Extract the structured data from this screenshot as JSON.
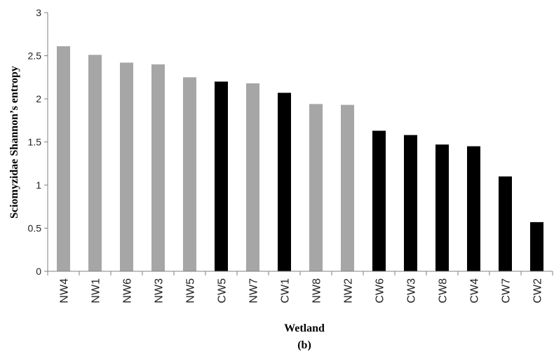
{
  "chart_data": {
    "type": "bar",
    "ylabel": "Sciomyzidae Shannon’s entropy",
    "xlabel": "Wetland",
    "caption": "(b)",
    "ylim": [
      0,
      3
    ],
    "yticks": [
      "0",
      "0.5",
      "1",
      "1.5",
      "2",
      "2.5",
      "3"
    ],
    "grid": false,
    "legend": "none",
    "categories": [
      "NW4",
      "NW1",
      "NW6",
      "NW3",
      "NW5",
      "CW5",
      "NW7",
      "CW1",
      "NW8",
      "NW2",
      "CW6",
      "CW3",
      "CW8",
      "CW4",
      "CW7",
      "CW2"
    ],
    "values": [
      2.61,
      2.51,
      2.42,
      2.4,
      2.25,
      2.2,
      2.18,
      2.07,
      1.94,
      1.93,
      1.63,
      1.58,
      1.47,
      1.45,
      1.1,
      0.57
    ],
    "colors": {
      "NW": "#a6a6a6",
      "CW": "#000000"
    }
  }
}
